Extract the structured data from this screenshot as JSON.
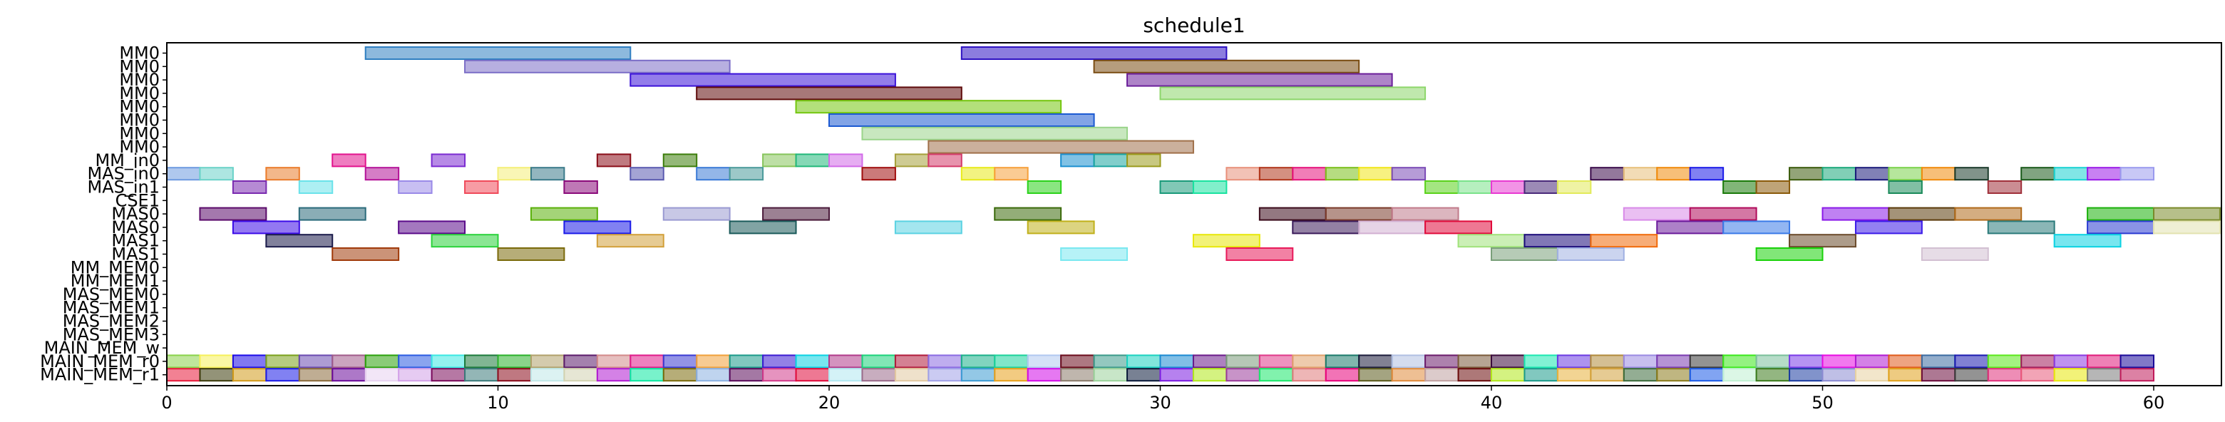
{
  "chart_data": {
    "type": "gantt",
    "title": "schedule1",
    "xlim": [
      0,
      62
    ],
    "x_ticks": [
      0,
      10,
      20,
      30,
      40,
      50,
      60
    ],
    "rows": [
      "MM0",
      "MM0",
      "MM0",
      "MM0",
      "MM0",
      "MM0",
      "MM0",
      "MM0",
      "MM_in0",
      "MAS_in0",
      "MAS_in1",
      "CSE1",
      "MAS0",
      "MAS0",
      "MAS1",
      "MAS1",
      "MM_MEM0",
      "MM_MEM1",
      "MAS_MEM0",
      "MAS_MEM1",
      "MAS_MEM2",
      "MAS_MEM3",
      "MAIN_MEM_w",
      "MAIN_MEM_r0",
      "MAIN_MEM_r1"
    ],
    "bars": [
      [
        [
          6,
          14,
          "#2f7fc1"
        ],
        [
          24,
          32,
          "#2e12c2"
        ]
      ],
      [
        [
          9,
          17,
          "#7b6dc6"
        ],
        [
          28,
          36,
          "#7a4c12"
        ]
      ],
      [
        [
          14,
          22,
          "#3b12d9"
        ],
        [
          29,
          37,
          "#6b1f9a"
        ]
      ],
      [
        [
          16,
          24,
          "#5e0a0a"
        ],
        [
          30,
          38,
          "#8cd66a"
        ]
      ],
      [
        [
          19,
          27,
          "#74c60f"
        ]
      ],
      [
        [
          20,
          28,
          "#1c5ad2"
        ]
      ],
      [
        [
          21,
          29,
          "#9ad48a"
        ]
      ],
      [
        [
          23,
          31,
          "#a0704a"
        ]
      ],
      [
        [
          5,
          6,
          "#e2138d"
        ],
        [
          8,
          9,
          "#7b2ad1"
        ],
        [
          13,
          14,
          "#8a0d18"
        ],
        [
          15,
          16,
          "#3c7d0a"
        ],
        [
          18,
          19,
          "#86c45b"
        ],
        [
          19,
          20,
          "#21b87a"
        ],
        [
          20,
          21,
          "#d26ae8"
        ],
        [
          22,
          23,
          "#a5a03a"
        ],
        [
          23,
          24,
          "#d43a6a"
        ],
        [
          27,
          28,
          "#1a8fd0"
        ],
        [
          28,
          29,
          "#1aa5a0"
        ],
        [
          29,
          30,
          "#9a9a1a"
        ]
      ],
      [
        [
          0,
          1,
          "#6d9ae0"
        ],
        [
          1,
          2,
          "#6ad2c8"
        ],
        [
          3,
          4,
          "#ea7b2a"
        ],
        [
          6,
          7,
          "#b31298"
        ],
        [
          10,
          11,
          "#f4ef78"
        ],
        [
          11,
          12,
          "#3a7a8a"
        ],
        [
          14,
          15,
          "#5a5ab0"
        ],
        [
          16,
          17,
          "#3a7ad6"
        ],
        [
          17,
          18,
          "#4a9a9a"
        ],
        [
          21,
          22,
          "#a00d0d"
        ],
        [
          24,
          25,
          "#e8ea1a"
        ],
        [
          25,
          26,
          "#f6a03a"
        ],
        [
          32,
          33,
          "#e8907a"
        ],
        [
          33,
          34,
          "#b0341a"
        ],
        [
          34,
          35,
          "#e5127b"
        ],
        [
          35,
          36,
          "#7abf1a"
        ],
        [
          36,
          37,
          "#f0e61a"
        ],
        [
          37,
          38,
          "#7a4ab6"
        ],
        [
          43,
          44,
          "#3a0a4a"
        ],
        [
          44,
          45,
          "#e8c07a"
        ],
        [
          45,
          46,
          "#f08a0a"
        ],
        [
          46,
          47,
          "#1a1ae8"
        ],
        [
          49,
          50,
          "#3a5a0a"
        ],
        [
          50,
          51,
          "#1aa87a"
        ],
        [
          51,
          52,
          "#1a1a7a"
        ],
        [
          52,
          53,
          "#7ad24a"
        ],
        [
          53,
          54,
          "#f08a0a"
        ],
        [
          54,
          55,
          "#1a3a2a"
        ],
        [
          56,
          57,
          "#1a5a1a"
        ],
        [
          57,
          58,
          "#1ad2d2"
        ],
        [
          58,
          59,
          "#9a1ae8"
        ],
        [
          59,
          60,
          "#9a9aee"
        ]
      ],
      [
        [
          2,
          3,
          "#7a2ab0"
        ],
        [
          4,
          5,
          "#6ae2ea"
        ],
        [
          7,
          8,
          "#9a8ae8"
        ],
        [
          9,
          10,
          "#f04a5a"
        ],
        [
          12,
          13,
          "#8a0a7a"
        ],
        [
          26,
          27,
          "#2ad21a"
        ],
        [
          30,
          31,
          "#1a9a7a"
        ],
        [
          31,
          32,
          "#1ae2a0"
        ],
        [
          38,
          39,
          "#5ad21a"
        ],
        [
          39,
          40,
          "#7ae28a"
        ],
        [
          40,
          41,
          "#e83ad2"
        ],
        [
          41,
          42,
          "#4a2a7a"
        ],
        [
          42,
          43,
          "#e2ea5a"
        ],
        [
          47,
          48,
          "#1a7a0a"
        ],
        [
          48,
          49,
          "#8a5a0a"
        ],
        [
          52,
          53,
          "#1a8a5a"
        ],
        [
          55,
          56,
          "#a0303a"
        ]
      ],
      [],
      [
        [
          1,
          3,
          "#5a0a6a"
        ],
        [
          4,
          6,
          "#2a6a7a"
        ],
        [
          11,
          13,
          "#5ab00a"
        ],
        [
          15,
          17,
          "#9a9ad2"
        ],
        [
          18,
          20,
          "#4a1a3a"
        ],
        [
          25,
          27,
          "#3a6a0a"
        ],
        [
          33,
          35,
          "#3a0a1a"
        ],
        [
          35,
          37,
          "#7a3a2a"
        ],
        [
          37,
          39,
          "#c07a8a"
        ],
        [
          44,
          46,
          "#d88ae8"
        ],
        [
          46,
          48,
          "#b00a5a"
        ],
        [
          50,
          52,
          "#8a1ae8"
        ],
        [
          52,
          54,
          "#5a3a0a"
        ],
        [
          54,
          56,
          "#b06a1a"
        ],
        [
          58,
          60,
          "#1ab00a"
        ],
        [
          60,
          62,
          "#7a8a2a"
        ]
      ],
      [
        [
          2,
          4,
          "#3a0ae8"
        ],
        [
          7,
          9,
          "#5a0a8a"
        ],
        [
          12,
          14,
          "#1a1ae8"
        ],
        [
          17,
          19,
          "#1a5a5a"
        ],
        [
          22,
          24,
          "#5ad2e2"
        ],
        [
          26,
          28,
          "#c0b01a"
        ],
        [
          34,
          36,
          "#3a1a5a"
        ],
        [
          36,
          38,
          "#d2b0d2"
        ],
        [
          38,
          40,
          "#e00a3a"
        ],
        [
          45,
          47,
          "#6a1a9a"
        ],
        [
          47,
          49,
          "#3a7ae8"
        ],
        [
          51,
          53,
          "#3a1ae8"
        ],
        [
          55,
          57,
          "#2a7a7a"
        ],
        [
          58,
          60,
          "#2a3ad2"
        ],
        [
          60,
          62,
          "#e2e2b0"
        ]
      ],
      [
        [
          3,
          5,
          "#1a1a4a"
        ],
        [
          8,
          10,
          "#2ad23a"
        ],
        [
          13,
          15,
          "#d2a03a"
        ],
        [
          31,
          33,
          "#e8e80a"
        ],
        [
          39,
          41,
          "#a0e27a"
        ],
        [
          41,
          43,
          "#1a0a7a"
        ],
        [
          43,
          45,
          "#f06a0a"
        ],
        [
          49,
          51,
          "#6a4a2a"
        ],
        [
          57,
          59,
          "#0ad2e2"
        ]
      ],
      [
        [
          5,
          7,
          "#a03a0a"
        ],
        [
          10,
          12,
          "#7a6a0a"
        ],
        [
          27,
          29,
          "#7ae8f0"
        ],
        [
          32,
          34,
          "#e81a5a"
        ],
        [
          40,
          42,
          "#7aa07a"
        ],
        [
          42,
          44,
          "#a0b0e2"
        ],
        [
          48,
          50,
          "#1ad20a"
        ],
        [
          53,
          55,
          "#d2c0d2"
        ]
      ],
      [],
      [],
      [],
      [],
      [],
      [],
      [],
      [
        [
          0,
          1,
          "#8ad24a"
        ],
        [
          1,
          2,
          "#f6f05a"
        ],
        [
          2,
          3,
          "#1a0ae8"
        ],
        [
          3,
          4,
          "#7aa01a"
        ],
        [
          4,
          5,
          "#6a4ab0"
        ],
        [
          5,
          6,
          "#a05a8a"
        ],
        [
          6,
          7,
          "#2aa00a"
        ],
        [
          7,
          8,
          "#2a5ae2"
        ],
        [
          8,
          9,
          "#3ae8e2"
        ],
        [
          9,
          10,
          "#1a7a3a"
        ],
        [
          10,
          11,
          "#2ab02a"
        ],
        [
          11,
          12,
          "#b0a06a"
        ],
        [
          12,
          13,
          "#5a1a6a"
        ],
        [
          13,
          14,
          "#d28a8a"
        ],
        [
          14,
          15,
          "#e01a8a"
        ],
        [
          15,
          16,
          "#3a3ad2"
        ],
        [
          16,
          17,
          "#f0a03a"
        ],
        [
          17,
          18,
          "#1a9a8a"
        ],
        [
          18,
          19,
          "#3a1ad2"
        ],
        [
          19,
          20,
          "#0ad2e2"
        ],
        [
          20,
          21,
          "#b03a8a"
        ],
        [
          21,
          22,
          "#1ad27a"
        ],
        [
          22,
          23,
          "#b01a3a"
        ],
        [
          23,
          24,
          "#8a6ae2"
        ],
        [
          24,
          25,
          "#1ab08a"
        ],
        [
          25,
          26,
          "#1ad29a"
        ],
        [
          26,
          27,
          "#b0c8f0"
        ],
        [
          27,
          28,
          "#6a0a1a"
        ],
        [
          28,
          29,
          "#3a9a8a"
        ],
        [
          29,
          30,
          "#1ad2c0"
        ],
        [
          30,
          31,
          "#1a8ad2"
        ],
        [
          31,
          32,
          "#6a1a8a"
        ],
        [
          32,
          33,
          "#7a9a7a"
        ],
        [
          33,
          34,
          "#e03a8a"
        ],
        [
          34,
          35,
          "#e0a06a"
        ],
        [
          35,
          36,
          "#1a7a6a"
        ],
        [
          36,
          37,
          "#1a1a3a"
        ],
        [
          37,
          38,
          "#b0c0e2"
        ],
        [
          38,
          39,
          "#6a1a6a"
        ],
        [
          39,
          40,
          "#7a5a3a"
        ],
        [
          40,
          41,
          "#3a0a3a"
        ],
        [
          41,
          42,
          "#1ae8b0"
        ],
        [
          42,
          43,
          "#6a3ae2"
        ],
        [
          43,
          44,
          "#b08a3a"
        ],
        [
          44,
          45,
          "#9a8ae2"
        ],
        [
          45,
          46,
          "#7a3ab0"
        ],
        [
          46,
          47,
          "#3a3a3a"
        ],
        [
          47,
          48,
          "#3ae81a"
        ],
        [
          48,
          49,
          "#7ac09a"
        ],
        [
          49,
          50,
          "#7a3ae8"
        ],
        [
          50,
          51,
          "#e80ae2"
        ],
        [
          51,
          52,
          "#b01ad2"
        ],
        [
          52,
          53,
          "#e05a1a"
        ],
        [
          53,
          54,
          "#3a6aa0"
        ],
        [
          54,
          55,
          "#1a1ab0"
        ],
        [
          55,
          56,
          "#5ae81a"
        ],
        [
          56,
          57,
          "#a01a5a"
        ],
        [
          57,
          58,
          "#8a3ae2"
        ],
        [
          58,
          59,
          "#e01a7a"
        ],
        [
          59,
          60,
          "#1a0a9a"
        ]
      ],
      [
        [
          0,
          1,
          "#e81a3a"
        ],
        [
          1,
          2,
          "#3a3a0a"
        ],
        [
          2,
          3,
          "#d29a1a"
        ],
        [
          3,
          4,
          "#1a1ae8"
        ],
        [
          4,
          5,
          "#8a6a3a"
        ],
        [
          5,
          6,
          "#6a0a9a"
        ],
        [
          6,
          7,
          "#e8d2f0"
        ],
        [
          7,
          8,
          "#d2a0e8"
        ],
        [
          8,
          9,
          "#7a0a5a"
        ],
        [
          9,
          10,
          "#3a7a7a"
        ],
        [
          10,
          11,
          "#8a0a1a"
        ],
        [
          11,
          12,
          "#c0e8e8"
        ],
        [
          12,
          13,
          "#d2d2b0"
        ],
        [
          13,
          14,
          "#b01ad2"
        ],
        [
          14,
          15,
          "#0ae8a0"
        ],
        [
          15,
          16,
          "#7a6a0a"
        ],
        [
          16,
          17,
          "#8ab0e2"
        ],
        [
          17,
          18,
          "#5a0a5a"
        ],
        [
          18,
          19,
          "#d23a8a"
        ],
        [
          19,
          20,
          "#e00a3a"
        ],
        [
          20,
          21,
          "#b0e8f0"
        ],
        [
          21,
          22,
          "#9a6a8a"
        ],
        [
          22,
          23,
          "#e2c8a0"
        ],
        [
          23,
          24,
          "#a0a0e8"
        ],
        [
          24,
          25,
          "#3a9ad2"
        ],
        [
          25,
          26,
          "#e8a01a"
        ],
        [
          26,
          27,
          "#d20ae8"
        ],
        [
          27,
          28,
          "#8a7a6a"
        ],
        [
          28,
          29,
          "#9ad29a"
        ],
        [
          29,
          30,
          "#0a1a3a"
        ],
        [
          30,
          31,
          "#7a1ae2"
        ],
        [
          31,
          32,
          "#b0e81a"
        ],
        [
          32,
          33,
          "#9a3a9a"
        ],
        [
          33,
          34,
          "#1ae86a"
        ],
        [
          34,
          35,
          "#e07a7a"
        ],
        [
          35,
          36,
          "#e8007a"
        ],
        [
          36,
          37,
          "#5a5a1a"
        ],
        [
          37,
          38,
          "#e08a3a"
        ],
        [
          38,
          39,
          "#c0a0a0"
        ],
        [
          39,
          40,
          "#6a0a0a"
        ],
        [
          40,
          41,
          "#b0e81a"
        ],
        [
          41,
          42,
          "#1a9a8a"
        ],
        [
          42,
          43,
          "#e8b03a"
        ],
        [
          43,
          44,
          "#d2a03a"
        ],
        [
          44,
          45,
          "#3a6a3a"
        ],
        [
          45,
          46,
          "#8a7a1a"
        ],
        [
          46,
          47,
          "#1a5ae8"
        ],
        [
          47,
          48,
          "#c0f0d2"
        ],
        [
          48,
          49,
          "#3a7a1a"
        ],
        [
          49,
          50,
          "#1a3aa0"
        ],
        [
          50,
          51,
          "#8a8ad2"
        ],
        [
          51,
          52,
          "#e8d2a0"
        ],
        [
          52,
          53,
          "#e0a01a"
        ],
        [
          53,
          54,
          "#6a0a3a"
        ],
        [
          54,
          55,
          "#3a3a3a"
        ],
        [
          55,
          56,
          "#e0307a"
        ],
        [
          56,
          57,
          "#e85a7a"
        ],
        [
          57,
          58,
          "#e8e80a"
        ],
        [
          58,
          59,
          "#7a7a7a"
        ],
        [
          59,
          60,
          "#c01a5a"
        ]
      ]
    ]
  }
}
